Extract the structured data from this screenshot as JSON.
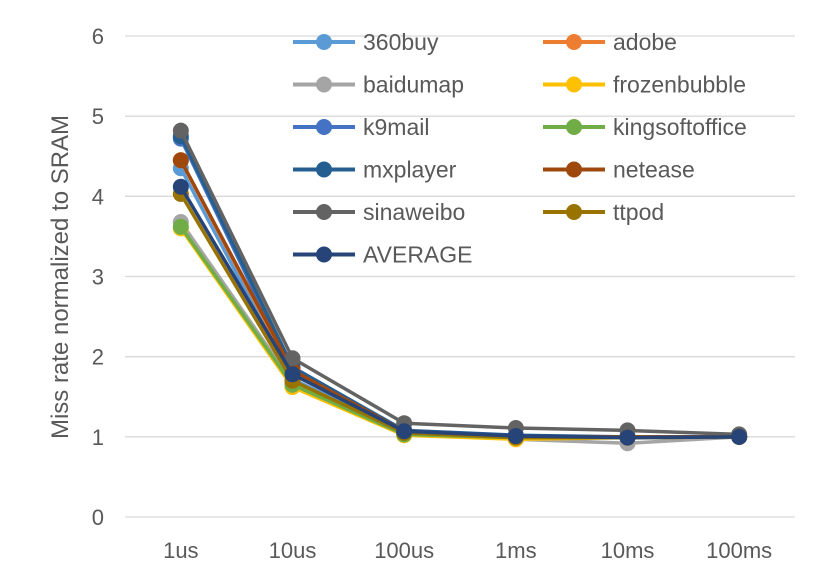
{
  "chart_data": {
    "type": "line",
    "title": "",
    "xlabel": "",
    "ylabel": "Miss rate normalized to SRAM",
    "categories": [
      "1us",
      "10us",
      "100us",
      "1ms",
      "10ms",
      "100ms"
    ],
    "ylim": [
      0,
      6
    ],
    "yticks": [
      0,
      1,
      2,
      3,
      4,
      5,
      6
    ],
    "grid": "horizontal",
    "legend": "top-right",
    "series": [
      {
        "name": "360buy",
        "color": "#5b9bd5",
        "values": [
          4.35,
          1.72,
          1.05,
          1.0,
          1.0,
          1.0
        ]
      },
      {
        "name": "adobe",
        "color": "#ed7d31",
        "values": [
          4.45,
          1.8,
          1.07,
          1.0,
          1.0,
          1.0
        ]
      },
      {
        "name": "baidumap",
        "color": "#a5a5a5",
        "values": [
          3.68,
          1.68,
          1.04,
          0.97,
          0.92,
          1.0
        ]
      },
      {
        "name": "frozenbubble",
        "color": "#ffc000",
        "values": [
          3.6,
          1.62,
          1.02,
          0.97,
          0.99,
          1.0
        ]
      },
      {
        "name": "k9mail",
        "color": "#4472c4",
        "values": [
          4.72,
          1.82,
          1.06,
          1.0,
          1.0,
          1.0
        ]
      },
      {
        "name": "kingsoftoffice",
        "color": "#70ad47",
        "values": [
          3.62,
          1.65,
          1.03,
          0.99,
          0.99,
          1.0
        ]
      },
      {
        "name": "mxplayer",
        "color": "#255e91",
        "values": [
          4.75,
          1.87,
          1.08,
          1.02,
          1.0,
          1.0
        ]
      },
      {
        "name": "netease",
        "color": "#9e480e",
        "values": [
          4.45,
          1.83,
          1.07,
          1.0,
          1.0,
          1.0
        ]
      },
      {
        "name": "sinaweibo",
        "color": "#636363",
        "values": [
          4.82,
          1.98,
          1.17,
          1.11,
          1.08,
          1.03
        ]
      },
      {
        "name": "ttpod",
        "color": "#997300",
        "values": [
          4.03,
          1.7,
          1.05,
          0.99,
          0.99,
          1.0
        ]
      },
      {
        "name": "AVERAGE",
        "color": "#264478",
        "values": [
          4.12,
          1.78,
          1.07,
          1.01,
          0.99,
          1.0
        ]
      }
    ]
  }
}
